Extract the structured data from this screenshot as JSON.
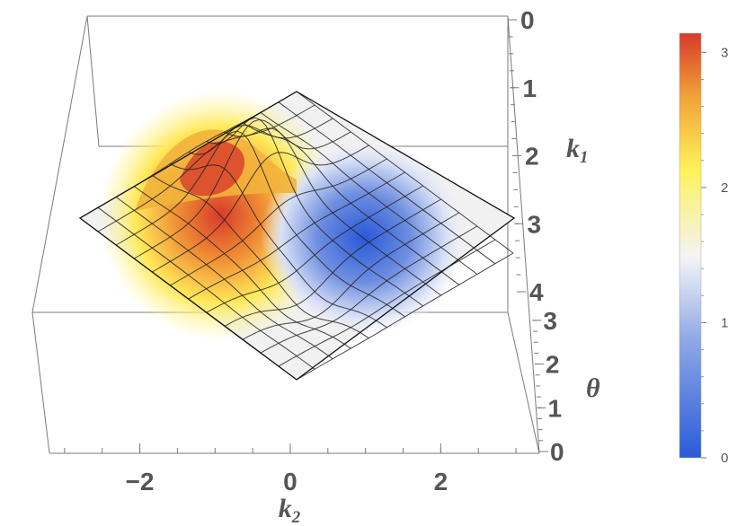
{
  "chart_data": {
    "type": "surface3d",
    "title": "",
    "axes": {
      "k2": {
        "label": "k",
        "subscript": "2",
        "range": [
          -3.14159,
          3.14159
        ],
        "ticks": [
          -2,
          0,
          2
        ],
        "tick_labels": [
          "−2",
          "0",
          "2"
        ]
      },
      "k1": {
        "label": "k",
        "subscript": "1",
        "range": [
          0,
          4
        ],
        "ticks": [
          0,
          1,
          2,
          3,
          4
        ],
        "tick_labels": [
          "0",
          "1",
          "2",
          "3",
          "4"
        ]
      },
      "theta": {
        "label": "θ",
        "range": [
          0,
          3.14159
        ],
        "ticks": [
          0,
          1,
          2,
          3
        ],
        "tick_labels": [
          "0",
          "1",
          "2",
          "3"
        ]
      }
    },
    "surface": {
      "description": "theta(k1,k2) over a diamond domain; maximum ≈ π near k2 ≈ −1.2, minimum ≈ 0 near k2 ≈ 1.2",
      "peak": {
        "k2": -1.2,
        "theta": 3.1
      },
      "trough": {
        "k2": 1.2,
        "theta": 0.0
      }
    },
    "colorbar": {
      "range": [
        0,
        3.14159
      ],
      "ticks": [
        0,
        1,
        2,
        3
      ],
      "tick_labels": [
        "0",
        "1",
        "2",
        "3"
      ],
      "colors": [
        "#2a5bd7",
        "#8fa9e6",
        "#f3f3f7",
        "#fff15a",
        "#f1a23a",
        "#d83a2b"
      ]
    }
  }
}
